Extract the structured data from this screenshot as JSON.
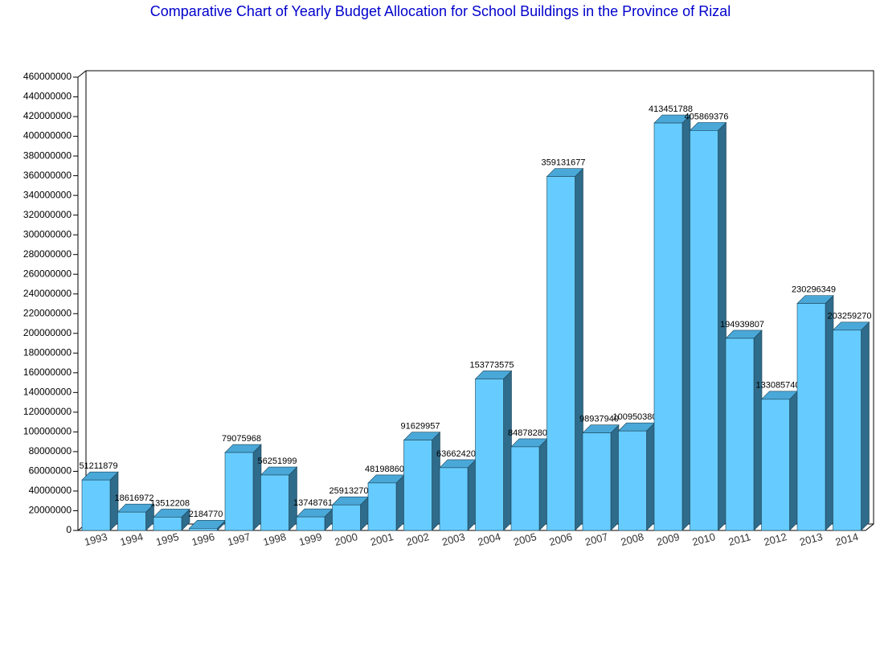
{
  "chart_data": {
    "type": "bar3d",
    "title": "Comparative Chart of Yearly Budget Allocation for School Buildings in the Province of Rizal",
    "categories": [
      "1993",
      "1994",
      "1995",
      "1996",
      "1997",
      "1998",
      "1999",
      "2000",
      "2001",
      "2002",
      "2003",
      "2004",
      "2005",
      "2006",
      "2007",
      "2008",
      "2009",
      "2010",
      "2011",
      "2012",
      "2013",
      "2014"
    ],
    "values": [
      51211879,
      18616972,
      13512208,
      2184770,
      79075968,
      56251999,
      13748761,
      25913270,
      48198860,
      91629957,
      63662420,
      153773575,
      84878280,
      359131677,
      98937940,
      100950380,
      413451788,
      405869376,
      194939807,
      133085740,
      230296349,
      203259270
    ],
    "color": "#66ccff",
    "ylim": [
      0,
      460000000
    ],
    "yticks": [
      0,
      20000000,
      40000000,
      60000000,
      80000000,
      100000000,
      120000000,
      140000000,
      160000000,
      180000000,
      200000000,
      220000000,
      240000000,
      260000000,
      280000000,
      300000000,
      320000000,
      340000000,
      360000000,
      380000000,
      400000000,
      420000000,
      440000000,
      460000000
    ]
  }
}
